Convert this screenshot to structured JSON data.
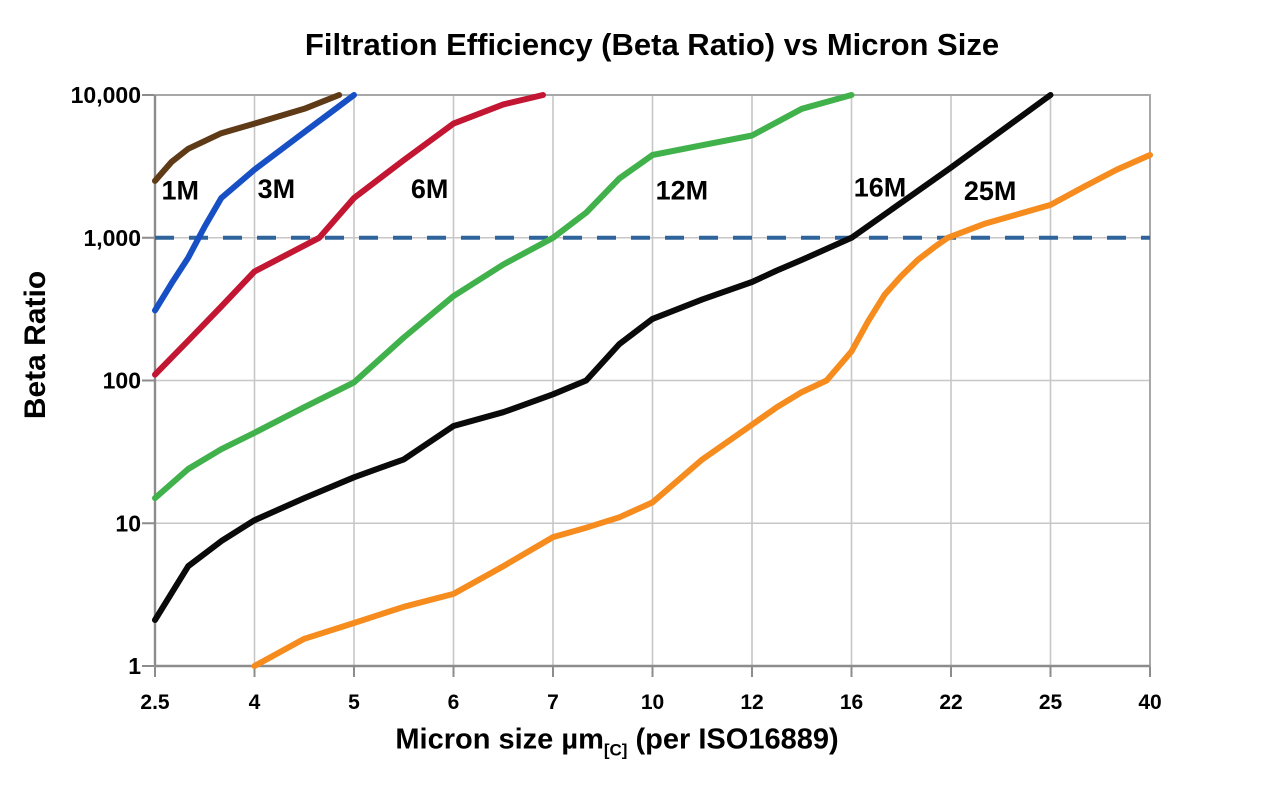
{
  "title": "Filtration Efficiency (Beta Ratio) vs Micron Size",
  "x_axis": {
    "title_main": "Micron size µm",
    "title_sub": "[C]",
    "title_rest": " (per ISO16889)",
    "tick_labels": [
      "2.5",
      "4",
      "5",
      "6",
      "7",
      "10",
      "12",
      "16",
      "22",
      "25",
      "40"
    ]
  },
  "y_axis": {
    "title": "Beta Ratio",
    "tick_labels": [
      "1",
      "10",
      "100",
      "1,000",
      "10,000"
    ]
  },
  "colors": {
    "grid": "#C7C7C7",
    "frame": "#A8A8A8",
    "axis": "#8C8C8C",
    "threshold": "#2F639B",
    "text": "#000000"
  },
  "chart_data": {
    "type": "line",
    "title": "Filtration Efficiency (Beta Ratio) vs Micron Size",
    "xlabel": "Micron size µm[C] (per ISO16889)",
    "ylabel": "Beta Ratio",
    "x_scale": "category-equal-spacing",
    "y_scale": "log",
    "grid": true,
    "x_ticks": [
      2.5,
      4,
      5,
      6,
      7,
      10,
      12,
      16,
      22,
      25,
      40
    ],
    "y_ticks": [
      1,
      10,
      100,
      1000,
      10000
    ],
    "ylim": [
      1,
      10000
    ],
    "threshold_line": {
      "y": 1000,
      "style": "dashed"
    },
    "series": [
      {
        "name": "1M",
        "color": "#5E3A17",
        "label": {
          "text": "1M",
          "x": 2.88,
          "y": 2150
        },
        "points": [
          [
            2.5,
            2500
          ],
          [
            2.75,
            3400
          ],
          [
            3,
            4200
          ],
          [
            3.5,
            5400
          ],
          [
            4,
            6300
          ],
          [
            4.5,
            8000
          ],
          [
            4.85,
            10000
          ]
        ]
      },
      {
        "name": "3M",
        "color": "#1750C4",
        "label": {
          "text": "3M",
          "x": 4.22,
          "y": 2200
        },
        "points": [
          [
            2.5,
            310
          ],
          [
            2.75,
            480
          ],
          [
            3,
            725
          ],
          [
            3.25,
            1200
          ],
          [
            3.5,
            1900
          ],
          [
            4,
            3000
          ],
          [
            4.5,
            5500
          ],
          [
            4.75,
            7400
          ],
          [
            5,
            10000
          ]
        ]
      },
      {
        "name": "6M",
        "color": "#C21633",
        "label": {
          "text": "6M",
          "x": 5.76,
          "y": 2200
        },
        "points": [
          [
            2.5,
            110
          ],
          [
            3,
            190
          ],
          [
            3.5,
            330
          ],
          [
            4,
            580
          ],
          [
            4.65,
            1000
          ],
          [
            5,
            1900
          ],
          [
            5.5,
            3500
          ],
          [
            6,
            6300
          ],
          [
            6.5,
            8600
          ],
          [
            6.9,
            10000
          ]
        ]
      },
      {
        "name": "12M",
        "color": "#40B14B",
        "label": {
          "text": "12M",
          "x": 10.59,
          "y": 2150
        },
        "points": [
          [
            2.5,
            15
          ],
          [
            3,
            24
          ],
          [
            3.5,
            33
          ],
          [
            4,
            43
          ],
          [
            4.5,
            65
          ],
          [
            5,
            97
          ],
          [
            5.5,
            200
          ],
          [
            6,
            390
          ],
          [
            6.5,
            650
          ],
          [
            7,
            1000
          ],
          [
            8,
            1500
          ],
          [
            9,
            2600
          ],
          [
            10,
            3800
          ],
          [
            11,
            4450
          ],
          [
            12,
            5200
          ],
          [
            14,
            8000
          ],
          [
            16,
            10000
          ]
        ]
      },
      {
        "name": "16M",
        "color": "#0A0A0A",
        "label": {
          "text": "16M",
          "x": 17.72,
          "y": 2250
        },
        "points": [
          [
            2.5,
            2.1
          ],
          [
            3,
            5
          ],
          [
            3.5,
            7.5
          ],
          [
            4,
            10.5
          ],
          [
            4.5,
            15
          ],
          [
            5,
            21
          ],
          [
            5.5,
            28
          ],
          [
            6,
            48
          ],
          [
            6.5,
            60
          ],
          [
            7,
            80
          ],
          [
            8,
            100
          ],
          [
            9,
            180
          ],
          [
            10,
            270
          ],
          [
            11,
            370
          ],
          [
            12,
            490
          ],
          [
            13,
            590
          ],
          [
            14,
            700
          ],
          [
            16,
            1000
          ],
          [
            22,
            3100
          ],
          [
            25,
            10000
          ]
        ]
      },
      {
        "name": "25M",
        "color": "#F68B1E",
        "label": {
          "text": "25M",
          "x": 23.18,
          "y": 2120
        },
        "points": [
          [
            4,
            1
          ],
          [
            4.5,
            1.55
          ],
          [
            5,
            2
          ],
          [
            5.5,
            2.6
          ],
          [
            6,
            3.2
          ],
          [
            6.5,
            5
          ],
          [
            7,
            8
          ],
          [
            8,
            9.3
          ],
          [
            9,
            11
          ],
          [
            10,
            14
          ],
          [
            11,
            28
          ],
          [
            12,
            49
          ],
          [
            13,
            65
          ],
          [
            14,
            83
          ],
          [
            15,
            100
          ],
          [
            16,
            160
          ],
          [
            17,
            260
          ],
          [
            18,
            400
          ],
          [
            19,
            540
          ],
          [
            20,
            700
          ],
          [
            21,
            860
          ],
          [
            21.8,
            1000
          ],
          [
            23,
            1250
          ],
          [
            25,
            1700
          ],
          [
            30,
            2270
          ],
          [
            35,
            3000
          ],
          [
            40,
            3800
          ]
        ]
      }
    ]
  }
}
